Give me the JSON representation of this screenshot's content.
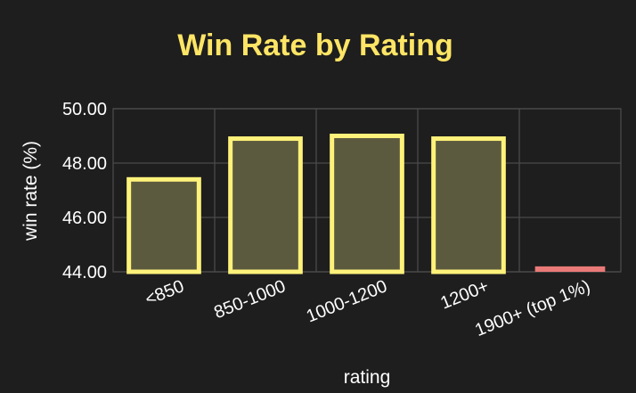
{
  "colors": {
    "background": "#1e1e1e",
    "title": "#ffe565",
    "grid": "#4a4a4a",
    "bar_fill": "#5c5a3e",
    "bar_stroke": "#fff27a",
    "highlight_fill": "#e97a78",
    "text": "#ffffff"
  },
  "chart_data": {
    "type": "bar",
    "title": "Win Rate by Rating",
    "xlabel": "rating",
    "ylabel": "win rate (%)",
    "categories": [
      "<850",
      "850-1000",
      "1000-1200",
      "1200+",
      "1900+ (top 1%)"
    ],
    "values": [
      47.4,
      48.9,
      49.0,
      48.9,
      44.2
    ],
    "highlight": [
      false,
      false,
      false,
      false,
      true
    ],
    "ylim": [
      44,
      50
    ],
    "yticks": [
      "44.00",
      "46.00",
      "48.00",
      "50.00"
    ],
    "grid": true,
    "legend": "none"
  }
}
